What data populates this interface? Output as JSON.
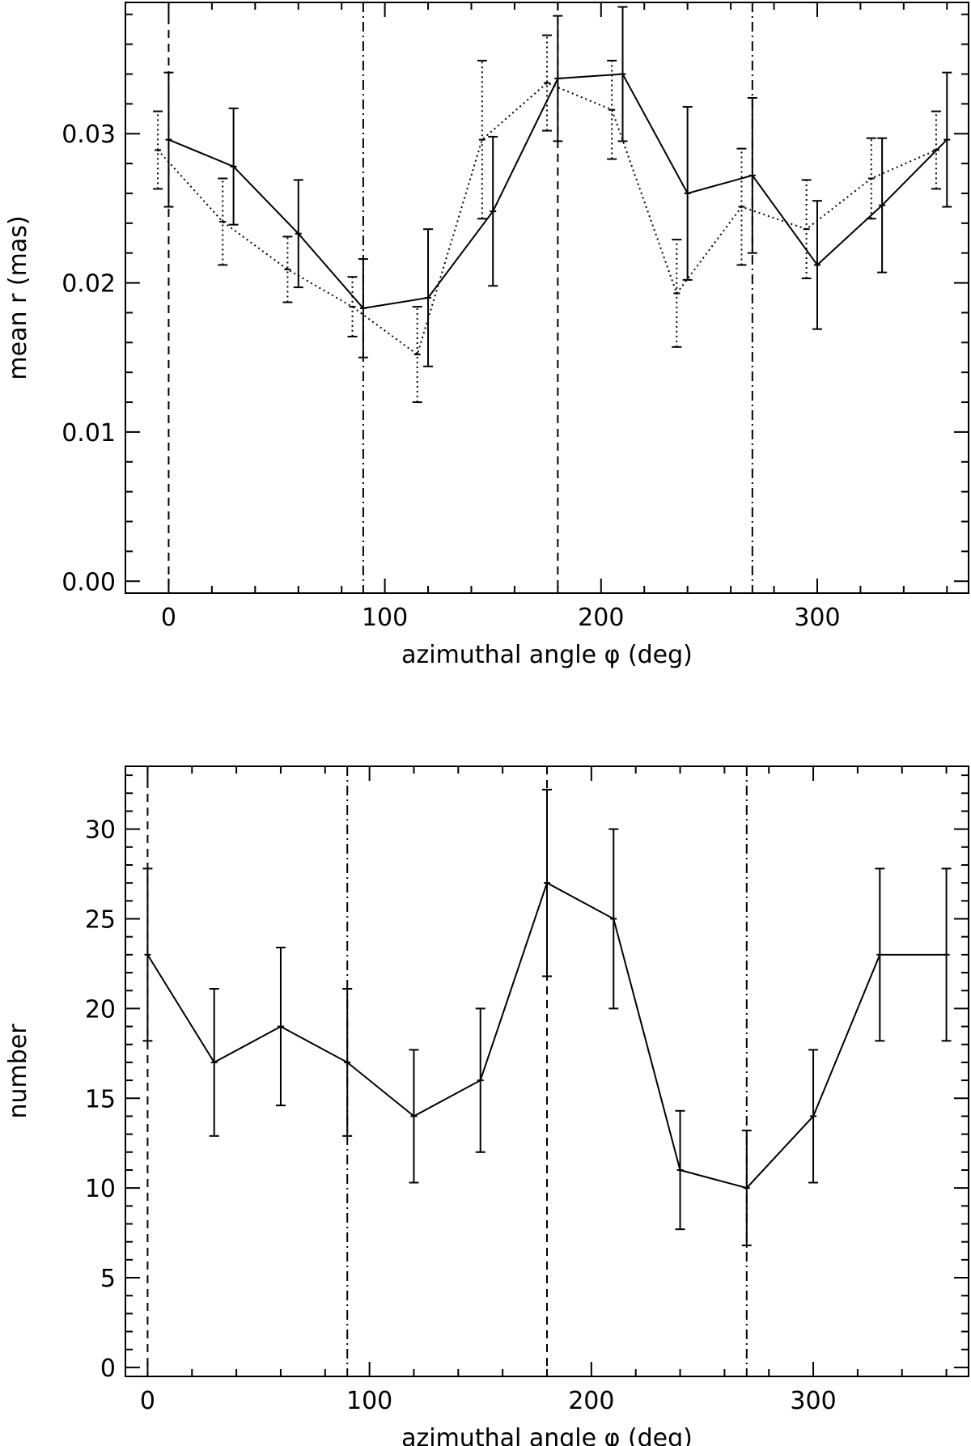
{
  "chart_data": [
    {
      "type": "line",
      "title": "",
      "xlabel": "azimuthal angle φ (deg)",
      "ylabel": "mean r (mas)",
      "xlim": [
        -20,
        370
      ],
      "ylim": [
        -0.0008,
        0.0388
      ],
      "x_ticks": [
        0,
        100,
        200,
        300
      ],
      "x_tick_labels": [
        "0",
        "100",
        "200",
        "300"
      ],
      "y_ticks": [
        0.0,
        0.01,
        0.02,
        0.03
      ],
      "y_tick_labels": [
        "0.00",
        "0.01",
        "0.02",
        "0.03"
      ],
      "grid": false,
      "vlines": [
        {
          "x": 0,
          "style": "dashed"
        },
        {
          "x": 90,
          "style": "dashdot"
        },
        {
          "x": 180,
          "style": "dashed"
        },
        {
          "x": 270,
          "style": "dashdot"
        }
      ],
      "series": [
        {
          "style": "solid",
          "x": [
            0,
            30,
            60,
            90,
            120,
            150,
            180,
            210,
            240,
            270,
            300,
            330,
            360
          ],
          "y": [
            0.0296,
            0.0278,
            0.0233,
            0.0183,
            0.019,
            0.0248,
            0.0337,
            0.034,
            0.026,
            0.0272,
            0.0212,
            0.0252,
            0.0296
          ],
          "err": [
            0.0045,
            0.0039,
            0.0036,
            0.0033,
            0.0046,
            0.005,
            0.0042,
            0.0045,
            0.0058,
            0.0052,
            0.0043,
            0.0045,
            0.0045
          ]
        },
        {
          "style": "dotted",
          "x": [
            -5,
            25,
            55,
            85,
            115,
            145,
            175,
            205,
            235,
            265,
            295,
            325,
            355
          ],
          "y": [
            0.0289,
            0.0241,
            0.0209,
            0.0184,
            0.0152,
            0.0296,
            0.0334,
            0.0316,
            0.0193,
            0.0251,
            0.0236,
            0.027,
            0.0289
          ],
          "err": [
            0.0026,
            0.0029,
            0.0022,
            0.002,
            0.0032,
            0.0053,
            0.0032,
            0.0033,
            0.0036,
            0.0039,
            0.0033,
            0.0027,
            0.0026
          ]
        }
      ]
    },
    {
      "type": "line",
      "title": "",
      "xlabel": "azimuthal angle φ (deg)",
      "ylabel": "number",
      "xlim": [
        -10,
        370
      ],
      "ylim": [
        -0.5,
        33.5
      ],
      "x_ticks": [
        0,
        100,
        200,
        300
      ],
      "x_tick_labels": [
        "0",
        "100",
        "200",
        "300"
      ],
      "y_ticks": [
        0,
        5,
        10,
        15,
        20,
        25,
        30
      ],
      "y_tick_labels": [
        "0",
        "5",
        "10",
        "15",
        "20",
        "25",
        "30"
      ],
      "grid": false,
      "vlines": [
        {
          "x": 0,
          "style": "dashed"
        },
        {
          "x": 90,
          "style": "dashdot"
        },
        {
          "x": 180,
          "style": "dashed"
        },
        {
          "x": 270,
          "style": "dashdot"
        }
      ],
      "series": [
        {
          "style": "solid",
          "x": [
            0,
            30,
            60,
            90,
            120,
            150,
            180,
            210,
            240,
            270,
            300,
            330,
            360
          ],
          "y": [
            23,
            17,
            19,
            17,
            14,
            16,
            27,
            25,
            11,
            10,
            14,
            23,
            23
          ],
          "err": [
            4.8,
            4.1,
            4.4,
            4.1,
            3.7,
            4.0,
            5.2,
            5.0,
            3.3,
            3.2,
            3.7,
            4.8,
            4.8
          ]
        }
      ]
    }
  ]
}
